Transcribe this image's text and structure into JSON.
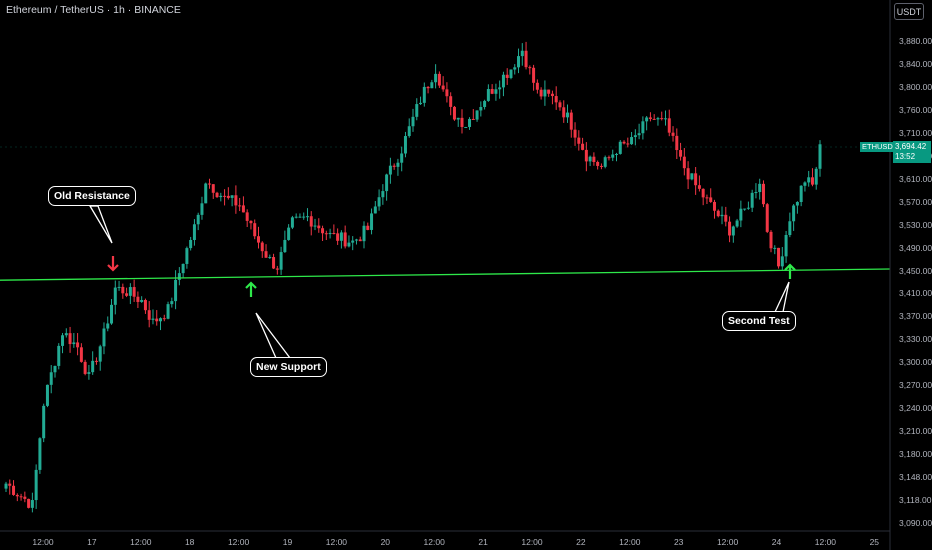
{
  "header": {
    "title": "Ethereum / TetherUS · 1h · BINANCE"
  },
  "quote_currency": "USDT",
  "symbol_tag": "ETHUSDT",
  "last_price": {
    "value": "3,694.42",
    "countdown": "13:52"
  },
  "colors": {
    "up": "#22ab94",
    "down": "#f23645",
    "support_line": "#2ee84a",
    "arrow_up": "#2ee84a",
    "arrow_down": "#f23645",
    "price_tag": "#089981"
  },
  "annotations": {
    "old_resistance": "Old Resistance",
    "new_support": "New Support",
    "second_test": "Second Test"
  },
  "chart_data": {
    "type": "candlestick",
    "title": "Ethereum / TetherUS · 1h · BINANCE",
    "y_ticks": [
      "3,880.00",
      "3,840.00",
      "3,800.00",
      "3,760.00",
      "3,710.00",
      "3,660.00",
      "3,610.00",
      "3,570.00",
      "3,530.00",
      "3,490.00",
      "3,450.00",
      "3,410.00",
      "3,370.00",
      "3,330.00",
      "3,300.00",
      "3,270.00",
      "3,240.00",
      "3,210.00",
      "3,180.00",
      "3,148.00",
      "3,118.00",
      "3,090.00"
    ],
    "x_ticks": [
      "12:00",
      "17",
      "12:00",
      "18",
      "12:00",
      "19",
      "12:00",
      "20",
      "12:00",
      "21",
      "12:00",
      "22",
      "12:00",
      "23",
      "12:00",
      "24",
      "12:00",
      "25"
    ],
    "ylim": [
      3085,
      3940
    ],
    "support_line": {
      "start": 3488,
      "end": 3506
    },
    "waypoints": [
      [
        0,
        3160
      ],
      [
        7,
        3125
      ],
      [
        10,
        3290
      ],
      [
        15,
        3405
      ],
      [
        19,
        3380
      ],
      [
        22,
        3330
      ],
      [
        26,
        3400
      ],
      [
        29,
        3475
      ],
      [
        32,
        3470
      ],
      [
        36,
        3455
      ],
      [
        39,
        3420
      ],
      [
        43,
        3440
      ],
      [
        47,
        3520
      ],
      [
        51,
        3590
      ],
      [
        53,
        3650
      ],
      [
        58,
        3620
      ],
      [
        62,
        3610
      ],
      [
        66,
        3560
      ],
      [
        70,
        3520
      ],
      [
        72,
        3510
      ],
      [
        76,
        3580
      ],
      [
        80,
        3590
      ],
      [
        86,
        3560
      ],
      [
        92,
        3550
      ],
      [
        96,
        3570
      ],
      [
        100,
        3640
      ],
      [
        105,
        3700
      ],
      [
        110,
        3780
      ],
      [
        114,
        3830
      ],
      [
        118,
        3760
      ],
      [
        122,
        3740
      ],
      [
        128,
        3790
      ],
      [
        134,
        3830
      ],
      [
        137,
        3860
      ],
      [
        141,
        3790
      ],
      [
        146,
        3780
      ],
      [
        150,
        3740
      ],
      [
        154,
        3690
      ],
      [
        158,
        3670
      ],
      [
        162,
        3700
      ],
      [
        166,
        3710
      ],
      [
        171,
        3750
      ],
      [
        175,
        3740
      ],
      [
        179,
        3680
      ],
      [
        183,
        3640
      ],
      [
        188,
        3600
      ],
      [
        192,
        3570
      ],
      [
        196,
        3600
      ],
      [
        200,
        3650
      ],
      [
        202,
        3570
      ],
      [
        205,
        3510
      ],
      [
        208,
        3590
      ],
      [
        212,
        3650
      ],
      [
        214,
        3640
      ],
      [
        216,
        3700
      ]
    ]
  }
}
